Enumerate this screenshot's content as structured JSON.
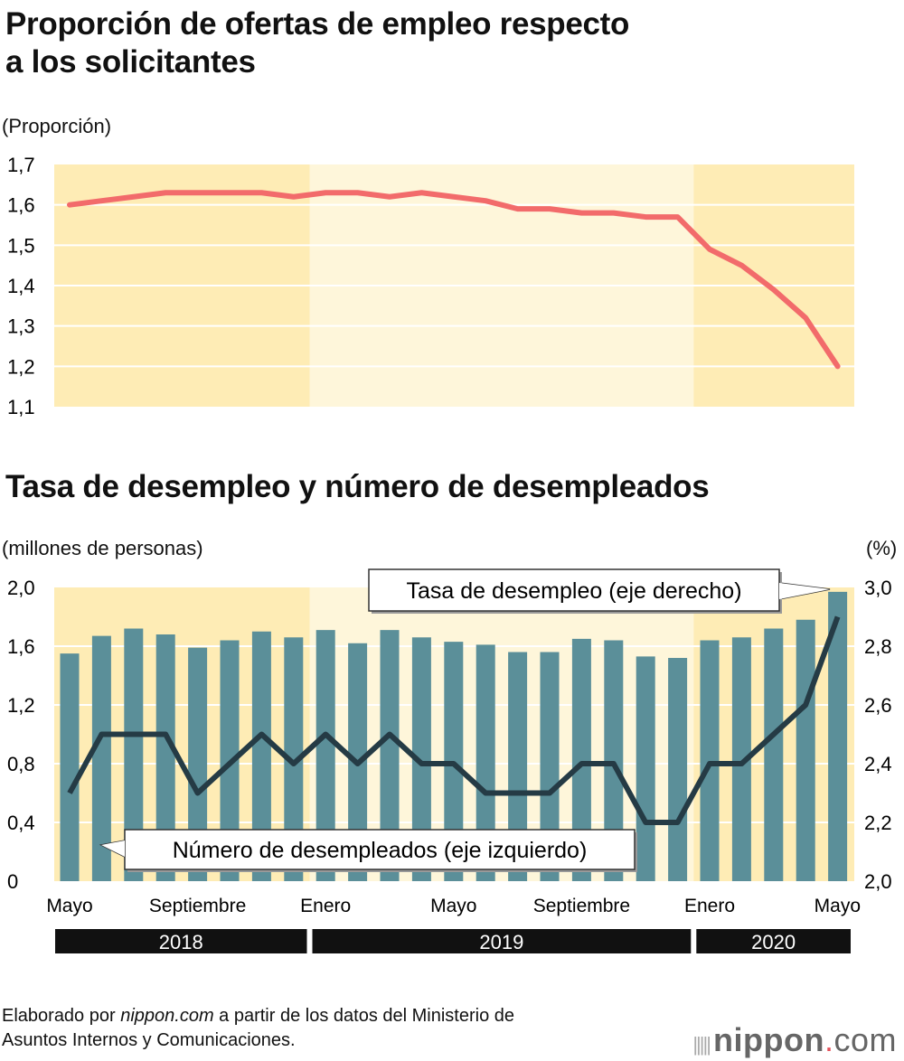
{
  "chart_data": [
    {
      "type": "line",
      "title": "Proporción de ofertas de empleo respecto a los solicitantes",
      "title_lines": [
        "Proporción de ofertas de empleo respecto",
        "a los solicitantes"
      ],
      "ylabel": "(Proporción)",
      "ylim": [
        1.1,
        1.7
      ],
      "yticks": [
        "1,7",
        "1,6",
        "1,5",
        "1,4",
        "1,3",
        "1,2",
        "1,1"
      ],
      "ytick_values": [
        1.7,
        1.6,
        1.5,
        1.4,
        1.3,
        1.2,
        1.1
      ],
      "grid": true,
      "x": [
        "2018-05",
        "2018-06",
        "2018-07",
        "2018-08",
        "2018-09",
        "2018-10",
        "2018-11",
        "2018-12",
        "2019-01",
        "2019-02",
        "2019-03",
        "2019-04",
        "2019-05",
        "2019-06",
        "2019-07",
        "2019-08",
        "2019-09",
        "2019-10",
        "2019-11",
        "2019-12",
        "2020-01",
        "2020-02",
        "2020-03",
        "2020-04",
        "2020-05"
      ],
      "values": [
        1.6,
        1.61,
        1.62,
        1.63,
        1.63,
        1.63,
        1.63,
        1.62,
        1.63,
        1.63,
        1.62,
        1.63,
        1.62,
        1.61,
        1.59,
        1.59,
        1.58,
        1.58,
        1.57,
        1.57,
        1.49,
        1.45,
        1.39,
        1.32,
        1.2
      ],
      "line_color": "#f26b6b"
    },
    {
      "type": "bar+line",
      "title": "Tasa de desempleo y número de desempleados",
      "ylabel_left": "(millones de personas)",
      "ylabel_right": "(%)",
      "ylim_left": [
        0,
        2.0
      ],
      "ylim_right": [
        2.0,
        3.0
      ],
      "yticks_left": [
        "2,0",
        "1,6",
        "1,2",
        "0,8",
        "0,4",
        "0"
      ],
      "yticks_left_values": [
        2.0,
        1.6,
        1.2,
        0.8,
        0.4,
        0
      ],
      "yticks_right": [
        "3,0",
        "2,8",
        "2,6",
        "2,4",
        "2,2",
        "2,0"
      ],
      "yticks_right_values": [
        3.0,
        2.8,
        2.6,
        2.4,
        2.2,
        2.0
      ],
      "x": [
        "2018-05",
        "2018-06",
        "2018-07",
        "2018-08",
        "2018-09",
        "2018-10",
        "2018-11",
        "2018-12",
        "2019-01",
        "2019-02",
        "2019-03",
        "2019-04",
        "2019-05",
        "2019-06",
        "2019-07",
        "2019-08",
        "2019-09",
        "2019-10",
        "2019-11",
        "2019-12",
        "2020-01",
        "2020-02",
        "2020-03",
        "2020-04",
        "2020-05"
      ],
      "series": [
        {
          "name": "Número de desempleados (eje izquierdo)",
          "type": "bar",
          "axis": "left",
          "color": "#5b8f99",
          "values": [
            1.55,
            1.67,
            1.72,
            1.68,
            1.59,
            1.64,
            1.7,
            1.66,
            1.71,
            1.62,
            1.71,
            1.66,
            1.63,
            1.61,
            1.56,
            1.56,
            1.65,
            1.64,
            1.53,
            1.52,
            1.64,
            1.66,
            1.72,
            1.78,
            1.97
          ]
        },
        {
          "name": "Tasa de desempleo (eje derecho)",
          "type": "line",
          "axis": "right",
          "color": "#253b45",
          "values": [
            2.3,
            2.5,
            2.5,
            2.5,
            2.3,
            2.4,
            2.5,
            2.4,
            2.5,
            2.4,
            2.5,
            2.4,
            2.4,
            2.3,
            2.3,
            2.3,
            2.4,
            2.4,
            2.2,
            2.2,
            2.4,
            2.4,
            2.5,
            2.6,
            2.9
          ]
        }
      ],
      "xtick_labels": [
        {
          "label": "Mayo",
          "index": 0
        },
        {
          "label": "Septiembre",
          "index": 4
        },
        {
          "label": "Enero",
          "index": 8
        },
        {
          "label": "Mayo",
          "index": 12
        },
        {
          "label": "Septiembre",
          "index": 16
        },
        {
          "label": "Enero",
          "index": 20
        },
        {
          "label": "Mayo",
          "index": 24
        }
      ],
      "years": [
        {
          "label": "2018",
          "from": 0,
          "to": 7
        },
        {
          "label": "2019",
          "from": 8,
          "to": 19
        },
        {
          "label": "2020",
          "from": 20,
          "to": 24
        }
      ]
    }
  ],
  "colors": {
    "band_dark": "#feecb5",
    "band_light": "#fef6da",
    "year_bar": "#111111"
  },
  "footer": {
    "source_pre": "Elaborado por ",
    "source_site": "nippon.com",
    "source_post": " a partir de los datos del Ministerio de",
    "source_line2": "Asuntos Internos y Comunicaciones.",
    "logo_main": "nippon",
    "logo_dot": ".",
    "logo_tld": "com"
  }
}
